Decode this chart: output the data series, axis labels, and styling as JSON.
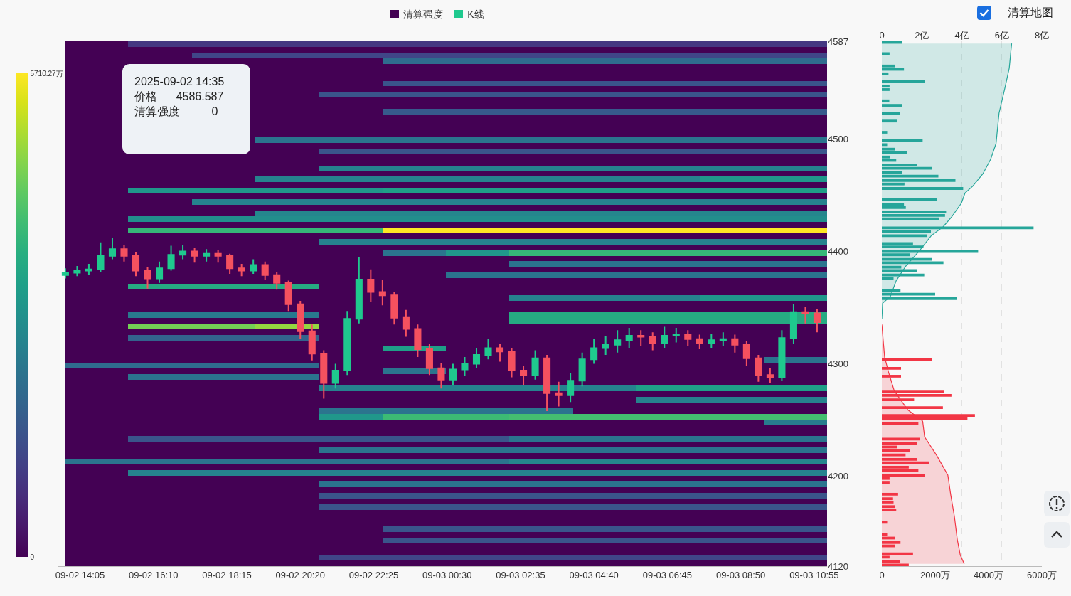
{
  "chart_data": [
    {
      "type": "heatmap",
      "clabel": "清算强度",
      "tick_labels": false,
      "clim": [
        0,
        5710.27
      ],
      "cticks": [
        {
          "value": 0,
          "label": "0"
        },
        {
          "value": 5710.27,
          "label": "5710.27万"
        }
      ],
      "categories": [
        null,
        null,
        null,
        null,
        null,
        null,
        null,
        null,
        null,
        null,
        null,
        null
      ],
      "y_categories": [
        null,
        null,
        null,
        null,
        null,
        null,
        null,
        null,
        null,
        null,
        null,
        null,
        null,
        null,
        null,
        null,
        null,
        null,
        null,
        null,
        null,
        null,
        null,
        null,
        null,
        null,
        null,
        null,
        null,
        null,
        null,
        null,
        null,
        null,
        null,
        null,
        null,
        null,
        null,
        null,
        null,
        null,
        null,
        null,
        null,
        null,
        null,
        null,
        null,
        null,
        null,
        null,
        null,
        null,
        null,
        null,
        null,
        null,
        null,
        null,
        null,
        null,
        null,
        null,
        null,
        null,
        null,
        null,
        null,
        null,
        null,
        null,
        null,
        null,
        null,
        null,
        null,
        null,
        null,
        null,
        null,
        null,
        null,
        null,
        null,
        null,
        null,
        null,
        null,
        null,
        null,
        null,
        null
      ],
      "cells": [
        [
          0,
          900,
          900,
          900,
          900,
          900,
          900,
          900,
          900,
          900,
          900,
          900
        ],
        [
          0,
          0,
          0,
          0,
          0,
          0,
          0,
          0,
          0,
          0,
          0,
          0
        ],
        [
          0,
          0,
          1200,
          1200,
          1200,
          1200,
          1200,
          1200,
          1200,
          1200,
          1200,
          1200
        ],
        [
          0,
          0,
          0,
          0,
          0,
          2000,
          2000,
          2000,
          2000,
          2000,
          2000,
          2000
        ],
        [
          0,
          null,
          null,
          0,
          0,
          0,
          0,
          0,
          0,
          0,
          0,
          0
        ],
        [
          0,
          null,
          null,
          0,
          0,
          0,
          0,
          0,
          0,
          0,
          0,
          0
        ],
        [
          0,
          null,
          null,
          0,
          0,
          0,
          0,
          0,
          0,
          0,
          0,
          0
        ],
        [
          0,
          null,
          null,
          0,
          0,
          1500,
          1500,
          1500,
          1500,
          1500,
          1500,
          1500
        ],
        [
          0,
          null,
          null,
          0,
          0,
          0,
          0,
          0,
          0,
          0,
          0,
          0
        ],
        [
          0,
          null,
          null,
          0,
          1500,
          1500,
          1500,
          1500,
          1500,
          1500,
          1500,
          1500
        ],
        [
          0,
          null,
          null,
          0,
          0,
          0,
          0,
          0,
          0,
          0,
          0,
          0
        ],
        [
          0,
          null,
          null,
          0,
          0,
          0,
          0,
          0,
          0,
          0,
          0,
          0
        ],
        [
          0,
          null,
          null,
          0,
          0,
          1600,
          1600,
          1600,
          1600,
          1600,
          1600,
          1600
        ],
        [
          0,
          null,
          null,
          0,
          0,
          0,
          0,
          0,
          0,
          0,
          0,
          0
        ],
        [
          0,
          null,
          null,
          0,
          0,
          0,
          0,
          0,
          0,
          0,
          0,
          0
        ],
        [
          0,
          null,
          null,
          0,
          0,
          0,
          0,
          0,
          0,
          0,
          0,
          0
        ],
        [
          0,
          null,
          null,
          0,
          0,
          0,
          0,
          0,
          0,
          0,
          0,
          0
        ],
        [
          0,
          null,
          null,
          2200,
          2200,
          2200,
          2200,
          2200,
          2200,
          2200,
          2200,
          2200
        ],
        [
          0,
          null,
          null,
          0,
          0,
          0,
          0,
          0,
          0,
          0,
          0,
          0
        ],
        [
          0,
          null,
          null,
          0,
          1500,
          1500,
          1500,
          1500,
          1500,
          1500,
          1500,
          1500
        ],
        [
          0,
          0,
          0,
          0,
          0,
          0,
          0,
          0,
          0,
          0,
          0,
          0
        ],
        [
          0,
          0,
          0,
          0,
          0,
          0,
          0,
          0,
          0,
          0,
          0,
          0
        ],
        [
          0,
          0,
          0,
          0,
          2500,
          2500,
          2500,
          2500,
          2500,
          2500,
          2500,
          2500
        ],
        [
          0,
          0,
          0,
          0,
          0,
          0,
          0,
          0,
          0,
          0,
          0,
          0
        ],
        [
          0,
          0,
          0,
          2500,
          2500,
          2500,
          2500,
          2500,
          2500,
          2500,
          3000,
          3000
        ],
        [
          0,
          0,
          0,
          0,
          0,
          0,
          0,
          0,
          0,
          0,
          0,
          0
        ],
        [
          0,
          3000,
          3000,
          3000,
          3000,
          3200,
          3200,
          3200,
          3200,
          3200,
          3200,
          3200
        ],
        [
          0,
          0,
          0,
          0,
          0,
          0,
          0,
          0,
          0,
          0,
          0,
          0
        ],
        [
          0,
          0,
          2500,
          2500,
          2500,
          2500,
          2500,
          2500,
          2500,
          2500,
          2500,
          2500
        ],
        [
          0,
          0,
          0,
          0,
          0,
          0,
          0,
          0,
          0,
          0,
          0,
          0
        ],
        [
          0,
          0,
          0,
          2600,
          2600,
          2600,
          2600,
          2600,
          2600,
          2600,
          2600,
          2600
        ],
        [
          0,
          2800,
          2800,
          2800,
          2800,
          2800,
          2800,
          2800,
          2800,
          2800,
          2800,
          2800
        ],
        [
          0,
          0,
          0,
          0,
          0,
          0,
          0,
          0,
          0,
          0,
          0,
          0
        ],
        [
          0,
          3800,
          3800,
          3800,
          3800,
          5710.27,
          5710.27,
          5710.27,
          5710.27,
          5710.27,
          5710.27,
          5710.27
        ],
        [
          0,
          0,
          0,
          0,
          0,
          0,
          0,
          0,
          0,
          0,
          0,
          0
        ],
        [
          0,
          0,
          0,
          0,
          2500,
          2500,
          2500,
          2500,
          2500,
          2500,
          2500,
          2500
        ],
        [
          0,
          0,
          0,
          0,
          0,
          0,
          0,
          0,
          0,
          0,
          0,
          0
        ],
        [
          0,
          0,
          0,
          0,
          0,
          2200,
          3000,
          3800,
          3800,
          3800,
          3800,
          3800
        ],
        [
          0,
          0,
          0,
          0,
          0,
          0,
          0,
          0,
          0,
          0,
          0,
          0
        ],
        [
          0,
          0,
          0,
          0,
          0,
          0,
          0,
          2200,
          2200,
          2200,
          2200,
          2200
        ],
        [
          0,
          0,
          0,
          0,
          0,
          0,
          0,
          0,
          0,
          0,
          0,
          0
        ],
        [
          0,
          0,
          0,
          0,
          0,
          0,
          2200,
          2200,
          2200,
          2200,
          2200,
          2200
        ],
        [
          0,
          0,
          0,
          0,
          0,
          0,
          0,
          0,
          0,
          0,
          0,
          0
        ],
        [
          0,
          3500,
          3500,
          3500,
          0,
          0,
          0,
          0,
          0,
          0,
          0,
          0
        ],
        [
          0,
          0,
          0,
          0,
          0,
          0,
          0,
          0,
          0,
          0,
          0,
          0
        ],
        [
          0,
          0,
          0,
          0,
          0,
          0,
          0,
          2500,
          2500,
          2500,
          3000,
          3000
        ],
        [
          0,
          0,
          0,
          0,
          0,
          0,
          0,
          0,
          0,
          0,
          0,
          0
        ],
        [
          0,
          0,
          0,
          0,
          0,
          0,
          0,
          0,
          0,
          0,
          0,
          0
        ],
        [
          0,
          2300,
          2300,
          2300,
          0,
          0,
          0,
          3500,
          3500,
          3500,
          3500,
          3500
        ],
        [
          0,
          0,
          0,
          0,
          0,
          0,
          0,
          3500,
          3500,
          3500,
          3500,
          3500
        ],
        [
          0,
          4500,
          4500,
          4800,
          0,
          0,
          0,
          0,
          0,
          0,
          0,
          0
        ],
        [
          0,
          0,
          0,
          0,
          0,
          0,
          0,
          0,
          0,
          0,
          0,
          0
        ],
        [
          0,
          1800,
          1800,
          1800,
          0,
          0,
          0,
          0,
          0,
          0,
          0,
          0
        ],
        [
          0,
          0,
          0,
          0,
          0,
          0,
          0,
          0,
          0,
          0,
          0,
          0
        ],
        [
          0,
          0,
          0,
          0,
          0,
          3200,
          0,
          0,
          0,
          0,
          0,
          0
        ],
        [
          0,
          0,
          0,
          0,
          0,
          0,
          0,
          0,
          0,
          0,
          0,
          0
        ],
        [
          0,
          0,
          0,
          0,
          0,
          0,
          0,
          0,
          0,
          0,
          0,
          2200
        ],
        [
          2000,
          2000,
          2000,
          2000,
          0,
          0,
          0,
          0,
          0,
          0,
          0,
          0
        ],
        [
          0,
          0,
          0,
          0,
          0,
          2200,
          0,
          0,
          0,
          0,
          0,
          0
        ],
        [
          0,
          2200,
          2200,
          2200,
          0,
          0,
          0,
          0,
          0,
          0,
          0,
          0
        ],
        [
          0,
          0,
          0,
          0,
          0,
          0,
          0,
          0,
          0,
          0,
          0,
          0
        ],
        [
          0,
          0,
          0,
          0,
          2500,
          2500,
          2500,
          2500,
          2500,
          3200,
          3200,
          3200
        ],
        [
          0,
          0,
          0,
          0,
          0,
          0,
          0,
          0,
          0,
          0,
          0,
          0
        ],
        [
          0,
          0,
          0,
          0,
          0,
          0,
          0,
          0,
          0,
          2500,
          2500,
          2500
        ],
        [
          0,
          0,
          0,
          0,
          0,
          0,
          0,
          0,
          0,
          0,
          0,
          0
        ],
        [
          0,
          0,
          0,
          0,
          2200,
          2200,
          2200,
          2200,
          0,
          0,
          0,
          0
        ],
        [
          0,
          0,
          0,
          0,
          3000,
          3900,
          3900,
          4000,
          4000,
          4000,
          4000,
          4000
        ],
        [
          0,
          0,
          0,
          0,
          0,
          0,
          0,
          0,
          0,
          0,
          0,
          2400
        ],
        [
          0,
          0,
          0,
          0,
          0,
          0,
          0,
          0,
          0,
          0,
          0,
          0
        ],
        [
          0,
          0,
          0,
          0,
          0,
          0,
          0,
          0,
          0,
          0,
          0,
          0
        ],
        [
          0,
          1500,
          1500,
          1500,
          1500,
          1500,
          1500,
          2200,
          2200,
          2200,
          2200,
          2200
        ],
        [
          0,
          0,
          0,
          0,
          0,
          0,
          0,
          0,
          0,
          0,
          0,
          0
        ],
        [
          0,
          0,
          0,
          0,
          2200,
          2200,
          2200,
          2200,
          2200,
          2200,
          2200,
          2200
        ],
        [
          0,
          0,
          0,
          0,
          0,
          0,
          0,
          0,
          0,
          0,
          0,
          0
        ],
        [
          2200,
          2200,
          2200,
          2200,
          2200,
          2200,
          2200,
          2600,
          2600,
          2600,
          2600,
          2600
        ],
        [
          0,
          0,
          0,
          0,
          0,
          0,
          0,
          0,
          0,
          0,
          0,
          0
        ],
        [
          0,
          2500,
          2500,
          2500,
          2500,
          2500,
          2500,
          2500,
          2500,
          2500,
          2500,
          2500
        ],
        [
          0,
          0,
          0,
          0,
          0,
          0,
          0,
          0,
          0,
          0,
          0,
          0
        ],
        [
          0,
          0,
          0,
          0,
          2200,
          2200,
          2200,
          2200,
          2200,
          2200,
          2200,
          2200
        ],
        [
          0,
          0,
          0,
          0,
          0,
          0,
          0,
          0,
          0,
          0,
          0,
          0
        ],
        [
          0,
          0,
          0,
          0,
          1500,
          1500,
          1500,
          1500,
          1500,
          1500,
          1500,
          1500
        ],
        [
          0,
          0,
          0,
          0,
          0,
          0,
          0,
          0,
          0,
          0,
          0,
          0
        ],
        [
          0,
          0,
          0,
          0,
          1500,
          1500,
          1500,
          1500,
          1500,
          1500,
          1500,
          1500
        ],
        [
          0,
          0,
          0,
          0,
          0,
          0,
          0,
          0,
          0,
          0,
          0,
          0
        ],
        [
          0,
          0,
          0,
          0,
          0,
          0,
          0,
          0,
          0,
          0,
          0,
          0
        ],
        [
          0,
          0,
          0,
          0,
          0,
          0,
          0,
          0,
          0,
          0,
          0,
          0
        ],
        [
          0,
          0,
          0,
          0,
          0,
          1500,
          1500,
          1500,
          1500,
          1500,
          1500,
          1500
        ],
        [
          0,
          0,
          0,
          0,
          0,
          0,
          0,
          0,
          0,
          0,
          0,
          0
        ],
        [
          0,
          0,
          0,
          0,
          0,
          1500,
          1500,
          1500,
          1500,
          1500,
          1500,
          1500
        ],
        [
          0,
          0,
          0,
          0,
          0,
          0,
          0,
          0,
          0,
          0,
          0,
          0
        ],
        [
          0,
          0,
          0,
          0,
          0,
          0,
          0,
          0,
          0,
          0,
          0,
          0
        ],
        [
          0,
          0,
          0,
          0,
          1200,
          1200,
          1200,
          1200,
          1200,
          1200,
          1200,
          1200
        ],
        [
          0,
          0,
          0,
          0,
          0,
          0,
          0,
          0,
          0,
          0,
          0,
          0
        ]
      ]
    },
    {
      "type": "candlestick",
      "legend": "top",
      "grid": false,
      "annotations": [
        "2025-09-02 14:35\n价格      4586.587\n清算强度          0"
      ],
      "xlim": [
        "2025-09-02T13:28",
        "2025-09-03T11:17"
      ],
      "xticks": [
        {
          "value": "2025-09-02T14:05",
          "label": "09-02 14:05"
        },
        {
          "value": "2025-09-02T16:10",
          "label": "09-02 16:10"
        },
        {
          "value": "2025-09-02T18:15",
          "label": "09-02 18:15"
        },
        {
          "value": "2025-09-02T20:20",
          "label": "09-02 20:20"
        },
        {
          "value": "2025-09-02T22:25",
          "label": "09-02 22:25"
        },
        {
          "value": "2025-09-03T00:30",
          "label": "09-03 00:30"
        },
        {
          "value": "2025-09-03T02:35",
          "label": "09-03 02:35"
        },
        {
          "value": "2025-09-03T04:40",
          "label": "09-03 04:40"
        },
        {
          "value": "2025-09-03T06:45",
          "label": "09-03 06:45"
        },
        {
          "value": "2025-09-03T08:50",
          "label": "09-03 08:50"
        },
        {
          "value": "2025-09-03T10:55",
          "label": "09-03 10:55"
        }
      ],
      "ylim": [
        4120,
        4587
      ],
      "yticks": [
        4120,
        4200,
        4300,
        4400,
        4500,
        4587
      ],
      "series": [
        {
          "name": "K线",
          "color": "#1fc98e",
          "x": [
            "2025-09-02T13:40",
            "2025-09-02T14:00",
            "2025-09-02T14:20",
            "2025-09-02T14:40",
            "2025-09-02T15:00",
            "2025-09-02T16:20",
            "2025-09-02T16:40",
            "2025-09-02T17:00",
            "2025-09-02T17:40",
            "2025-09-02T19:00",
            "2025-09-02T21:20",
            "2025-09-02T21:40",
            "2025-09-02T22:00",
            "2025-09-03T00:40",
            "2025-09-03T01:00",
            "2025-09-03T01:20",
            "2025-09-03T01:40",
            "2025-09-03T03:00",
            "2025-09-03T04:00",
            "2025-09-03T04:20",
            "2025-09-03T04:40",
            "2025-09-03T05:00",
            "2025-09-03T05:20",
            "2025-09-03T05:40",
            "2025-09-03T06:40",
            "2025-09-03T07:00",
            "2025-09-03T08:00",
            "2025-09-03T08:20",
            "2025-09-03T10:00",
            "2025-09-03T10:20"
          ],
          "ohlc": [
            [
              4379,
              4385,
              4376,
              4381
            ],
            [
              4381,
              4387,
              4378,
              4383
            ],
            [
              4383,
              4389,
              4379,
              4384
            ],
            [
              4384,
              4408,
              4382,
              4396
            ],
            [
              4396,
              4412,
              4393,
              4402
            ],
            [
              4376,
              4391,
              4372,
              4385
            ],
            [
              4385,
              4405,
              4383,
              4397
            ],
            [
              4397,
              4406,
              4393,
              4400
            ],
            [
              4396,
              4402,
              4391,
              4398
            ],
            [
              4383,
              4393,
              4380,
              4388
            ],
            [
              4283,
              4300,
              4278,
              4294
            ],
            [
              4294,
              4347,
              4290,
              4340
            ],
            [
              4340,
              4395,
              4336,
              4375
            ],
            [
              4286,
              4300,
              4281,
              4295
            ],
            [
              4295,
              4306,
              4289,
              4300
            ],
            [
              4300,
              4314,
              4296,
              4308
            ],
            [
              4308,
              4322,
              4304,
              4314
            ],
            [
              4290,
              4312,
              4286,
              4305
            ],
            [
              4272,
              4292,
              4266,
              4285
            ],
            [
              4285,
              4310,
              4280,
              4304
            ],
            [
              4304,
              4322,
              4300,
              4314
            ],
            [
              4314,
              4325,
              4308,
              4317
            ],
            [
              4317,
              4330,
              4310,
              4321
            ],
            [
              4321,
              4332,
              4314,
              4325
            ],
            [
              4318,
              4333,
              4314,
              4325
            ],
            [
              4325,
              4332,
              4319,
              4326
            ],
            [
              4318,
              4327,
              4314,
              4321
            ],
            [
              4321,
              4328,
              4316,
              4322
            ],
            [
              4288,
              4330,
              4285,
              4323
            ],
            [
              4323,
              4353,
              4318,
              4346
            ]
          ]
        },
        {
          "color": "#f5515f",
          "x": [
            "2025-09-02T15:20",
            "2025-09-02T15:40",
            "2025-09-02T16:00",
            "2025-09-02T17:20",
            "2025-09-02T18:00",
            "2025-09-02T18:20",
            "2025-09-02T18:40",
            "2025-09-02T19:20",
            "2025-09-02T19:40",
            "2025-09-02T20:00",
            "2025-09-02T20:20",
            "2025-09-02T20:40",
            "2025-09-02T21:00",
            "2025-09-02T22:20",
            "2025-09-02T22:40",
            "2025-09-02T23:00",
            "2025-09-02T23:20",
            "2025-09-02T23:40",
            "2025-09-03T00:00",
            "2025-09-03T00:20",
            "2025-09-03T02:00",
            "2025-09-03T02:20",
            "2025-09-03T02:40",
            "2025-09-03T03:20",
            "2025-09-03T03:40",
            "2025-09-03T06:00",
            "2025-09-03T06:20",
            "2025-09-03T07:20",
            "2025-09-03T07:40",
            "2025-09-03T08:40",
            "2025-09-03T09:00",
            "2025-09-03T09:20",
            "2025-09-03T09:40",
            "2025-09-03T10:40",
            "2025-09-03T11:00"
          ],
          "ohlc": [
            [
              4402,
              4406,
              4391,
              4396
            ],
            [
              4396,
              4399,
              4378,
              4383
            ],
            [
              4383,
              4386,
              4367,
              4376
            ],
            [
              4400,
              4403,
              4390,
              4396
            ],
            [
              4398,
              4401,
              4390,
              4396
            ],
            [
              4396,
              4398,
              4380,
              4385
            ],
            [
              4385,
              4389,
              4378,
              4383
            ],
            [
              4388,
              4391,
              4375,
              4379
            ],
            [
              4379,
              4382,
              4366,
              4372
            ],
            [
              4372,
              4374,
              4347,
              4353
            ],
            [
              4353,
              4356,
              4322,
              4329
            ],
            [
              4329,
              4335,
              4303,
              4309
            ],
            [
              4309,
              4312,
              4269,
              4283
            ],
            [
              4375,
              4384,
              4355,
              4364
            ],
            [
              4364,
              4375,
              4352,
              4361
            ],
            [
              4361,
              4364,
              4335,
              4341
            ],
            [
              4341,
              4348,
              4324,
              4331
            ],
            [
              4331,
              4335,
              4306,
              4313
            ],
            [
              4313,
              4318,
              4290,
              4296
            ],
            [
              4296,
              4301,
              4278,
              4286
            ],
            [
              4314,
              4318,
              4302,
              4311
            ],
            [
              4311,
              4314,
              4288,
              4294
            ],
            [
              4294,
              4298,
              4281,
              4290
            ],
            [
              4305,
              4308,
              4258,
              4274
            ],
            [
              4274,
              4284,
              4262,
              4272
            ],
            [
              4325,
              4330,
              4316,
              4324
            ],
            [
              4324,
              4328,
              4312,
              4318
            ],
            [
              4326,
              4330,
              4316,
              4322
            ],
            [
              4322,
              4326,
              4313,
              4318
            ],
            [
              4322,
              4326,
              4310,
              4317
            ],
            [
              4317,
              4320,
              4298,
              4305
            ],
            [
              4305,
              4308,
              4284,
              4290
            ],
            [
              4290,
              4296,
              4283,
              4288
            ],
            [
              4346,
              4351,
              4336,
              4345
            ],
            [
              4345,
              4349,
              4328,
              4337
            ]
          ]
        }
      ]
    },
    {
      "type": "bar",
      "orientation": "horizontal",
      "tick_labels": "x",
      "grid": "x",
      "annotations": [
        "清算地图"
      ],
      "ylim": [
        4120,
        4587
      ],
      "xlim": [
        0,
        6000
      ],
      "xticks": [
        0,
        {
          "value": 2000,
          "label": "2000万"
        },
        {
          "value": 4000,
          "label": "4000万"
        },
        {
          "value": 6000,
          "label": "6000万"
        }
      ],
      "x2lim": [
        0,
        8
      ],
      "x2ticks": [
        0,
        {
          "value": 2,
          "label": "2亿"
        },
        {
          "value": 4,
          "label": "4亿"
        },
        {
          "value": 6,
          "label": "6亿"
        },
        {
          "value": 8,
          "label": "8亿"
        }
      ],
      "series": [
        {
          "type": "area",
          "axis": "x2",
          "color": "#26a69a",
          "x": [
            4585,
            4563,
            4546,
            4523,
            4496,
            4482,
            4469,
            4458,
            4452,
            4443,
            4431,
            4422,
            4414,
            4401,
            4387,
            4374,
            4360,
            4354,
            4340
          ],
          "values": [
            6.49,
            6.37,
            6.16,
            5.86,
            5.71,
            5.44,
            5.05,
            4.54,
            4.16,
            3.98,
            3.5,
            3.07,
            2.47,
            1.9,
            1.2,
            0.72,
            0.43,
            0.04,
            0
          ]
        },
        {
          "type": "area",
          "axis": "x2",
          "color": "#f23645",
          "x": [
            4335,
            4306,
            4293,
            4276,
            4259,
            4249,
            4235,
            4218,
            4201,
            4184,
            4164,
            4144,
            4130,
            4122
          ],
          "values": [
            0,
            0.14,
            0.33,
            0.62,
            1.3,
            2.04,
            2.14,
            2.76,
            3.3,
            3.44,
            3.63,
            3.77,
            3.92,
            4.12
          ]
        },
        {
          "color": "#26a69a",
          "x": [
            4586,
            4576,
            4565,
            4562,
            4558,
            4551,
            4547,
            4544,
            4534,
            4530,
            4523,
            4516,
            4506,
            4499,
            4495,
            4491,
            4488,
            4484,
            4481,
            4477,
            4474,
            4470,
            4467,
            4463,
            4460,
            4456,
            4446,
            4442,
            4439,
            4435,
            4432,
            4429,
            4421,
            4418,
            4414,
            4407,
            4404,
            4400,
            4397,
            4393,
            4390,
            4386,
            4383,
            4379,
            4376,
            4365,
            4362,
            4358
          ],
          "values": [
            760,
            290,
            500,
            830,
            250,
            1600,
            290,
            290,
            280,
            760,
            690,
            570,
            200,
            1530,
            200,
            500,
            960,
            320,
            540,
            1310,
            1870,
            760,
            2120,
            2760,
            850,
            3050,
            2070,
            830,
            900,
            2410,
            2370,
            2160,
            5690,
            1840,
            1680,
            1170,
            1560,
            3610,
            1050,
            1880,
            2310,
            730,
            1330,
            1590,
            440,
            700,
            2000,
            2800
          ]
        },
        {
          "color": "#f23645",
          "x": [
            4304,
            4296,
            4289,
            4275,
            4272,
            4268,
            4261,
            4254,
            4251,
            4247,
            4233,
            4229,
            4226,
            4223,
            4219,
            4215,
            4212,
            4208,
            4205,
            4201,
            4198,
            4194,
            4184,
            4180,
            4177,
            4173,
            4170,
            4159,
            4148,
            4145,
            4141,
            4138,
            4131,
            4128,
            4124,
            4121
          ],
          "values": [
            1880,
            720,
            720,
            2340,
            2610,
            1210,
            2290,
            3490,
            3210,
            1370,
            1430,
            1310,
            580,
            1040,
            890,
            1330,
            1780,
            1010,
            1370,
            1610,
            290,
            290,
            610,
            420,
            440,
            500,
            540,
            200,
            200,
            500,
            700,
            500,
            1170,
            290,
            690,
            1010
          ]
        }
      ]
    }
  ]
}
